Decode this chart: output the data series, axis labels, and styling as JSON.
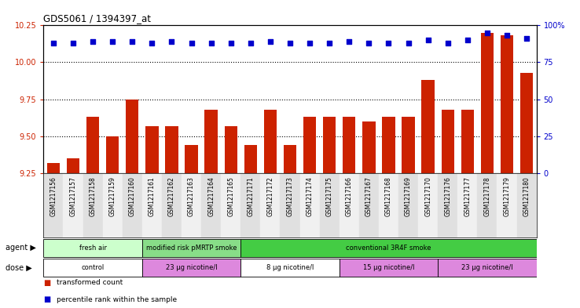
{
  "title": "GDS5061 / 1394397_at",
  "samples": [
    "GSM1217156",
    "GSM1217157",
    "GSM1217158",
    "GSM1217159",
    "GSM1217160",
    "GSM1217161",
    "GSM1217162",
    "GSM1217163",
    "GSM1217164",
    "GSM1217165",
    "GSM1217171",
    "GSM1217172",
    "GSM1217173",
    "GSM1217174",
    "GSM1217175",
    "GSM1217166",
    "GSM1217167",
    "GSM1217168",
    "GSM1217169",
    "GSM1217170",
    "GSM1217176",
    "GSM1217177",
    "GSM1217178",
    "GSM1217179",
    "GSM1217180"
  ],
  "bar_values": [
    9.32,
    9.35,
    9.63,
    9.5,
    9.75,
    9.57,
    9.57,
    9.44,
    9.68,
    9.57,
    9.44,
    9.68,
    9.44,
    9.63,
    9.63,
    9.63,
    9.6,
    9.63,
    9.63,
    9.88,
    9.68,
    9.68,
    10.2,
    10.18,
    9.93
  ],
  "percentile_values": [
    88,
    88,
    89,
    89,
    89,
    88,
    89,
    88,
    88,
    88,
    88,
    89,
    88,
    88,
    88,
    89,
    88,
    88,
    88,
    90,
    88,
    90,
    95,
    93,
    91
  ],
  "bar_color": "#cc2200",
  "dot_color": "#0000cc",
  "ylim_left": [
    9.25,
    10.25
  ],
  "ylim_right": [
    0,
    100
  ],
  "yticks_left": [
    9.25,
    9.5,
    9.75,
    10.0,
    10.25
  ],
  "yticks_right": [
    0,
    25,
    50,
    75,
    100
  ],
  "ytick_labels_right": [
    "0",
    "25",
    "50",
    "75",
    "100%"
  ],
  "grid_values": [
    9.5,
    9.75,
    10.0
  ],
  "agent_groups": [
    {
      "label": "fresh air",
      "start": 0,
      "end": 4,
      "color": "#ccffcc"
    },
    {
      "label": "modified risk pMRTP smoke",
      "start": 5,
      "end": 9,
      "color": "#88dd88"
    },
    {
      "label": "conventional 3R4F smoke",
      "start": 10,
      "end": 24,
      "color": "#44cc44"
    }
  ],
  "dose_groups": [
    {
      "label": "control",
      "start": 0,
      "end": 4,
      "color": "#ffffff"
    },
    {
      "label": "23 μg nicotine/l",
      "start": 5,
      "end": 9,
      "color": "#dd88dd"
    },
    {
      "label": "8 μg nicotine/l",
      "start": 10,
      "end": 14,
      "color": "#ffffff"
    },
    {
      "label": "15 μg nicotine/l",
      "start": 15,
      "end": 19,
      "color": "#dd88dd"
    },
    {
      "label": "23 μg nicotine/l",
      "start": 20,
      "end": 24,
      "color": "#dd88dd"
    }
  ],
  "legend_bar_label": "transformed count",
  "legend_dot_label": "percentile rank within the sample",
  "agent_label": "agent",
  "dose_label": "dose"
}
